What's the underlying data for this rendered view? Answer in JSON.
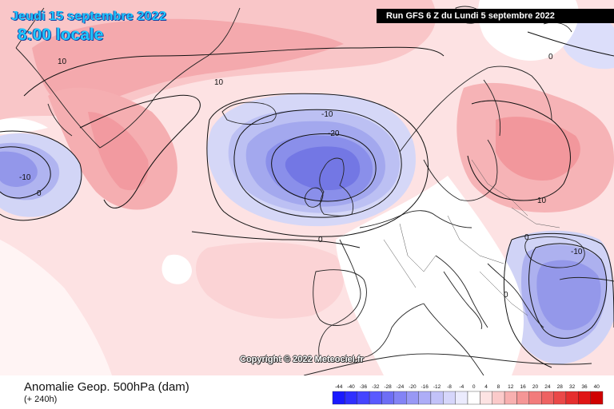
{
  "header": {
    "valid_date": "Jeudi 15 septembre 2022",
    "valid_time": "8:00 locale",
    "run_info": "Run GFS 6 Z du Lundi 5 septembre 2022"
  },
  "footer": {
    "field_title": "Anomalie Geop. 500hPa (dam)",
    "lead_time": "(+ 240h)",
    "copyright": "Copyright © 2022 Meteociel.fr"
  },
  "map": {
    "contour_labels": [
      "-10",
      "10",
      "10",
      "0",
      "-10",
      "-20",
      "0",
      "0",
      "10",
      "-10",
      "0",
      "0"
    ]
  },
  "legend": {
    "ticks": [
      "-44",
      "-40",
      "-36",
      "-32",
      "-28",
      "-24",
      "-20",
      "-16",
      "-12",
      "-8",
      "-4",
      "0",
      "4",
      "8",
      "12",
      "16",
      "20",
      "24",
      "28",
      "32",
      "36",
      "40"
    ],
    "colors": [
      "#1a1aff",
      "#2f2fff",
      "#4545ff",
      "#5a5aff",
      "#6e6ef5",
      "#8383f5",
      "#9898f5",
      "#adadf7",
      "#c2c2f9",
      "#d6d6fb",
      "#ebebfd",
      "#ffffff",
      "#fde3e3",
      "#fbcaca",
      "#f8b0b0",
      "#f59696",
      "#f27c7c",
      "#ee6262",
      "#ea4848",
      "#e52e2e",
      "#e01414",
      "#d00000"
    ]
  }
}
